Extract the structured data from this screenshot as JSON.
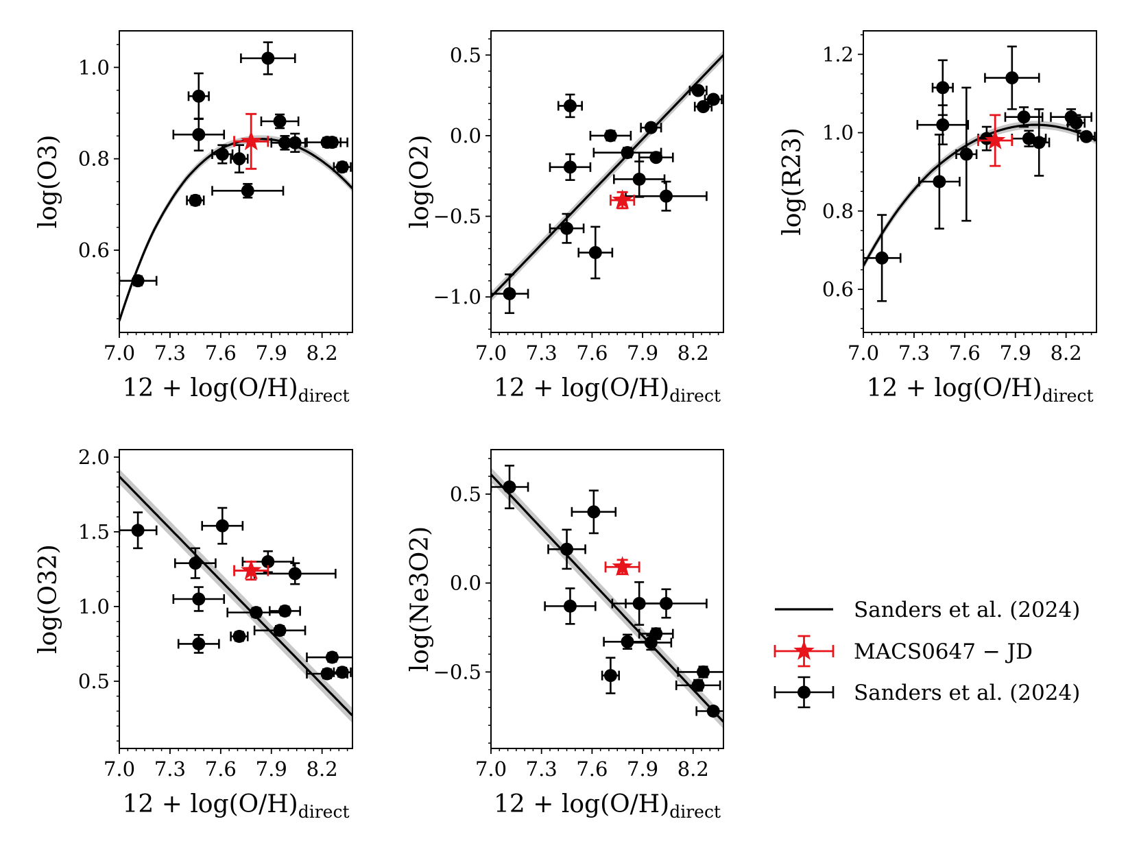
{
  "figure": {
    "colors": {
      "fit_line": "#000000",
      "fit_band": "#c8c8c8",
      "sample_points": "#000000",
      "target_point": "#e8141b"
    },
    "legend": {
      "entries": [
        {
          "label": "Sanders et al. (2024)",
          "kind": "line"
        },
        {
          "label": "MACS0647 − JD",
          "kind": "red-star-errorbar"
        },
        {
          "label": "Sanders et al. (2024)",
          "kind": "black-point-errorbar"
        }
      ]
    }
  },
  "chart_data": [
    {
      "id": "o3",
      "type": "scatter",
      "xlabel_main": "12 + log(O/H)",
      "xlabel_sub": "direct",
      "ylabel": "log(O3)",
      "xlim": [
        7.0,
        8.38
      ],
      "ylim": [
        0.42,
        1.08
      ],
      "xticks": [
        7.0,
        7.3,
        7.6,
        7.9,
        8.2
      ],
      "xtick_labels": [
        "7.0",
        "7.3",
        "7.6",
        "7.9",
        "8.2"
      ],
      "yticks": [
        0.6,
        0.8,
        1.0
      ],
      "ytick_labels": [
        "0.6",
        "0.8",
        "1.0"
      ],
      "yminor_step": 0.05,
      "fit": {
        "form": "quadratic",
        "x": [
          7.0,
          7.2,
          7.4,
          7.6,
          7.8,
          7.9,
          8.0,
          8.2,
          8.38
        ],
        "y": [
          0.445,
          0.64,
          0.758,
          0.822,
          0.843,
          0.842,
          0.834,
          0.795,
          0.735
        ],
        "band": 0.008
      },
      "points": [
        {
          "x": 7.11,
          "y": 0.533,
          "xerr": 0.11,
          "yerr": 0.01
        },
        {
          "x": 7.45,
          "y": 0.709,
          "xerr": 0.05,
          "yerr": 0.01
        },
        {
          "x": 7.47,
          "y": 0.937,
          "xerr": 0.06,
          "yerr": 0.05
        },
        {
          "x": 7.47,
          "y": 0.853,
          "xerr": 0.15,
          "yerr": 0.035
        },
        {
          "x": 7.61,
          "y": 0.81,
          "xerr": 0.06,
          "yerr": 0.02
        },
        {
          "x": 7.71,
          "y": 0.8,
          "xerr": 0.05,
          "yerr": 0.03
        },
        {
          "x": 7.76,
          "y": 0.73,
          "xerr": 0.21,
          "yerr": 0.015
        },
        {
          "x": 7.88,
          "y": 1.02,
          "xerr": 0.16,
          "yerr": 0.035
        },
        {
          "x": 7.95,
          "y": 0.882,
          "xerr": 0.11,
          "yerr": 0.015
        },
        {
          "x": 7.98,
          "y": 0.835,
          "xerr": 0.08,
          "yerr": 0.015
        },
        {
          "x": 8.04,
          "y": 0.835,
          "xerr": 0.06,
          "yerr": 0.02
        },
        {
          "x": 8.23,
          "y": 0.836,
          "xerr": 0.12,
          "yerr": 0.01
        },
        {
          "x": 8.26,
          "y": 0.836,
          "xerr": 0.05,
          "yerr": 0.01
        },
        {
          "x": 8.32,
          "y": 0.782,
          "xerr": 0.05,
          "yerr": 0.01
        }
      ],
      "target": {
        "x": 7.78,
        "y": 0.838,
        "xerr": 0.1,
        "yerr": 0.06
      }
    },
    {
      "id": "o2",
      "type": "scatter",
      "xlabel_main": "12 + log(O/H)",
      "xlabel_sub": "direct",
      "ylabel": "log(O2)",
      "xlim": [
        7.0,
        8.38
      ],
      "ylim": [
        -1.22,
        0.65
      ],
      "xticks": [
        7.0,
        7.3,
        7.6,
        7.9,
        8.2
      ],
      "xtick_labels": [
        "7.0",
        "7.3",
        "7.6",
        "7.9",
        "8.2"
      ],
      "yticks": [
        -1.0,
        -0.5,
        0.0,
        0.5
      ],
      "ytick_labels": [
        "−1.0",
        "−0.5",
        "0.0",
        "0.5"
      ],
      "yminor_step": 0.1,
      "fit": {
        "form": "linear",
        "x": [
          7.0,
          8.38
        ],
        "y": [
          -1.0,
          0.5
        ],
        "band": 0.03
      },
      "points": [
        {
          "x": 7.11,
          "y": -0.98,
          "xerr": 0.11,
          "yerr": 0.12
        },
        {
          "x": 7.45,
          "y": -0.575,
          "xerr": 0.1,
          "yerr": 0.09
        },
        {
          "x": 7.47,
          "y": 0.185,
          "xerr": 0.07,
          "yerr": 0.07
        },
        {
          "x": 7.47,
          "y": -0.195,
          "xerr": 0.12,
          "yerr": 0.08
        },
        {
          "x": 7.62,
          "y": -0.725,
          "xerr": 0.1,
          "yerr": 0.16
        },
        {
          "x": 7.71,
          "y": 0.0,
          "xerr": 0.12,
          "yerr": 0.03
        },
        {
          "x": 7.81,
          "y": -0.105,
          "xerr": 0.2,
          "yerr": 0.03
        },
        {
          "x": 7.88,
          "y": -0.27,
          "xerr": 0.15,
          "yerr": 0.11
        },
        {
          "x": 7.95,
          "y": 0.05,
          "xerr": 0.06,
          "yerr": 0.02
        },
        {
          "x": 7.98,
          "y": -0.135,
          "xerr": 0.1,
          "yerr": 0.02
        },
        {
          "x": 8.04,
          "y": -0.375,
          "xerr": 0.24,
          "yerr": 0.09
        },
        {
          "x": 8.23,
          "y": 0.28,
          "xerr": 0.05,
          "yerr": 0.02
        },
        {
          "x": 8.26,
          "y": 0.18,
          "xerr": 0.05,
          "yerr": 0.02
        },
        {
          "x": 8.32,
          "y": 0.225,
          "xerr": 0.05,
          "yerr": 0.02
        }
      ],
      "target": {
        "x": 7.78,
        "y": -0.4,
        "xerr": 0.07,
        "yerr": 0.05
      }
    },
    {
      "id": "r23",
      "type": "scatter",
      "xlabel_main": "12 + log(O/H)",
      "xlabel_sub": "direct",
      "ylabel": "log(R23)",
      "xlim": [
        7.0,
        8.38
      ],
      "ylim": [
        0.49,
        1.26
      ],
      "xticks": [
        7.0,
        7.3,
        7.6,
        7.9,
        8.2
      ],
      "xtick_labels": [
        "7.0",
        "7.3",
        "7.6",
        "7.9",
        "8.2"
      ],
      "yticks": [
        0.6,
        0.8,
        1.0,
        1.2
      ],
      "ytick_labels": [
        "0.6",
        "0.8",
        "1.0",
        "1.2"
      ],
      "yminor_step": 0.05,
      "fit": {
        "form": "quadratic",
        "x": [
          7.0,
          7.2,
          7.4,
          7.6,
          7.8,
          8.0,
          8.2,
          8.38
        ],
        "y": [
          0.66,
          0.8,
          0.9,
          0.965,
          1.005,
          1.02,
          1.01,
          0.98
        ],
        "band": 0.01
      },
      "points": [
        {
          "x": 7.11,
          "y": 0.68,
          "xerr": 0.11,
          "yerr": 0.11
        },
        {
          "x": 7.45,
          "y": 0.875,
          "xerr": 0.12,
          "yerr": 0.12
        },
        {
          "x": 7.47,
          "y": 1.115,
          "xerr": 0.06,
          "yerr": 0.07
        },
        {
          "x": 7.47,
          "y": 1.02,
          "xerr": 0.15,
          "yerr": 0.05
        },
        {
          "x": 7.61,
          "y": 0.945,
          "xerr": 0.06,
          "yerr": 0.17
        },
        {
          "x": 7.73,
          "y": 0.985,
          "xerr": 0.05,
          "yerr": 0.03
        },
        {
          "x": 7.88,
          "y": 1.14,
          "xerr": 0.16,
          "yerr": 0.08
        },
        {
          "x": 7.95,
          "y": 1.04,
          "xerr": 0.11,
          "yerr": 0.025
        },
        {
          "x": 7.98,
          "y": 0.985,
          "xerr": 0.1,
          "yerr": 0.02
        },
        {
          "x": 8.04,
          "y": 0.975,
          "xerr": 0.06,
          "yerr": 0.085
        },
        {
          "x": 8.23,
          "y": 1.04,
          "xerr": 0.12,
          "yerr": 0.02
        },
        {
          "x": 8.26,
          "y": 1.025,
          "xerr": 0.05,
          "yerr": 0.02
        },
        {
          "x": 8.32,
          "y": 0.99,
          "xerr": 0.05,
          "yerr": 0.01
        }
      ],
      "target": {
        "x": 7.78,
        "y": 0.98,
        "xerr": 0.1,
        "yerr": 0.065
      }
    },
    {
      "id": "o32",
      "type": "scatter",
      "xlabel_main": "12 + log(O/H)",
      "xlabel_sub": "direct",
      "ylabel": "log(O32)",
      "xlim": [
        7.0,
        8.38
      ],
      "ylim": [
        0.05,
        2.05
      ],
      "xticks": [
        7.0,
        7.3,
        7.6,
        7.9,
        8.2
      ],
      "xtick_labels": [
        "7.0",
        "7.3",
        "7.6",
        "7.9",
        "8.2"
      ],
      "yticks": [
        0.5,
        1.0,
        1.5,
        2.0
      ],
      "ytick_labels": [
        "0.5",
        "1.0",
        "1.5",
        "2.0"
      ],
      "yminor_step": 0.1,
      "fit": {
        "form": "linear",
        "x": [
          7.0,
          8.38
        ],
        "y": [
          1.87,
          0.27
        ],
        "band": 0.05
      },
      "points": [
        {
          "x": 7.11,
          "y": 1.51,
          "xerr": 0.11,
          "yerr": 0.12
        },
        {
          "x": 7.45,
          "y": 1.29,
          "xerr": 0.12,
          "yerr": 0.1
        },
        {
          "x": 7.47,
          "y": 1.05,
          "xerr": 0.15,
          "yerr": 0.08
        },
        {
          "x": 7.47,
          "y": 0.75,
          "xerr": 0.12,
          "yerr": 0.06
        },
        {
          "x": 7.61,
          "y": 1.54,
          "xerr": 0.12,
          "yerr": 0.12
        },
        {
          "x": 7.71,
          "y": 0.8,
          "xerr": 0.05,
          "yerr": 0.03
        },
        {
          "x": 7.81,
          "y": 0.96,
          "xerr": 0.17,
          "yerr": 0.03
        },
        {
          "x": 7.88,
          "y": 1.3,
          "xerr": 0.15,
          "yerr": 0.07
        },
        {
          "x": 7.95,
          "y": 0.84,
          "xerr": 0.15,
          "yerr": 0.03
        },
        {
          "x": 7.98,
          "y": 0.97,
          "xerr": 0.09,
          "yerr": 0.03
        },
        {
          "x": 8.04,
          "y": 1.22,
          "xerr": 0.24,
          "yerr": 0.07
        },
        {
          "x": 8.23,
          "y": 0.55,
          "xerr": 0.12,
          "yerr": 0.03
        },
        {
          "x": 8.26,
          "y": 0.66,
          "xerr": 0.15,
          "yerr": 0.03
        },
        {
          "x": 8.32,
          "y": 0.56,
          "xerr": 0.05,
          "yerr": 0.03
        }
      ],
      "target": {
        "x": 7.78,
        "y": 1.24,
        "xerr": 0.1,
        "yerr": 0.06
      }
    },
    {
      "id": "ne3o2",
      "type": "scatter",
      "xlabel_main": "12 + log(O/H)",
      "xlabel_sub": "direct",
      "ylabel": "log(Ne3O2)",
      "xlim": [
        7.0,
        8.38
      ],
      "ylim": [
        -0.93,
        0.75
      ],
      "xticks": [
        7.0,
        7.3,
        7.6,
        7.9,
        8.2
      ],
      "xtick_labels": [
        "7.0",
        "7.3",
        "7.6",
        "7.9",
        "8.2"
      ],
      "yticks": [
        -0.5,
        0.0,
        0.5
      ],
      "ytick_labels": [
        "−0.5",
        "0.0",
        "0.5"
      ],
      "yminor_step": 0.1,
      "fit": {
        "form": "linear",
        "x": [
          7.0,
          8.38
        ],
        "y": [
          0.61,
          -0.78
        ],
        "band": 0.04
      },
      "points": [
        {
          "x": 7.11,
          "y": 0.54,
          "xerr": 0.11,
          "yerr": 0.12
        },
        {
          "x": 7.45,
          "y": 0.19,
          "xerr": 0.11,
          "yerr": 0.11
        },
        {
          "x": 7.47,
          "y": -0.13,
          "xerr": 0.15,
          "yerr": 0.1
        },
        {
          "x": 7.61,
          "y": 0.4,
          "xerr": 0.13,
          "yerr": 0.12
        },
        {
          "x": 7.71,
          "y": -0.52,
          "xerr": 0.05,
          "yerr": 0.1
        },
        {
          "x": 7.81,
          "y": -0.33,
          "xerr": 0.14,
          "yerr": 0.04
        },
        {
          "x": 7.88,
          "y": -0.115,
          "xerr": 0.16,
          "yerr": 0.12
        },
        {
          "x": 7.95,
          "y": -0.335,
          "xerr": 0.12,
          "yerr": 0.04
        },
        {
          "x": 7.98,
          "y": -0.285,
          "xerr": 0.1,
          "yerr": 0.03
        },
        {
          "x": 8.04,
          "y": -0.115,
          "xerr": 0.24,
          "yerr": 0.08
        },
        {
          "x": 8.23,
          "y": -0.575,
          "xerr": 0.13,
          "yerr": 0.03
        },
        {
          "x": 8.26,
          "y": -0.5,
          "xerr": 0.15,
          "yerr": 0.03
        },
        {
          "x": 8.32,
          "y": -0.72,
          "xerr": 0.1,
          "yerr": 0.02
        }
      ],
      "target": {
        "x": 7.78,
        "y": 0.09,
        "xerr": 0.1,
        "yerr": 0.04
      }
    }
  ]
}
